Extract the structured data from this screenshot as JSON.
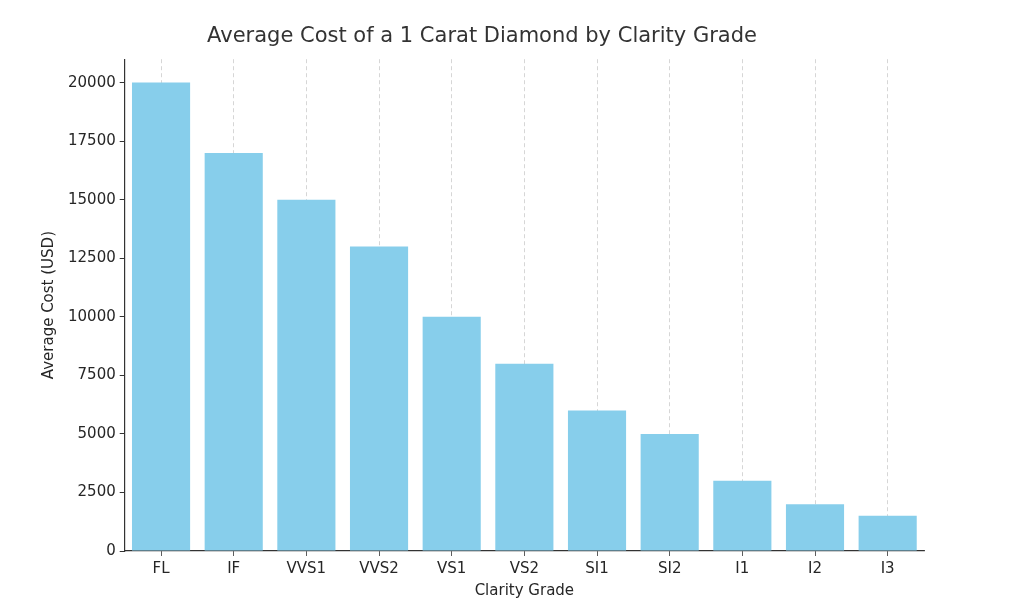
{
  "chart_data": {
    "type": "bar",
    "title": "Average Cost of a 1 Carat Diamond by Clarity Grade",
    "x_label": "Clarity Grade",
    "y_label": "Average Cost (USD)",
    "categories": [
      "FL",
      "IF",
      "VVS1",
      "VVS2",
      "VS1",
      "VS2",
      "SI1",
      "SI2",
      "I1",
      "I2",
      "I3"
    ],
    "values": [
      20000,
      17000,
      15000,
      13000,
      10000,
      8000,
      6000,
      5000,
      3000,
      2000,
      1500
    ],
    "color": "#87ceeb",
    "ylim": [
      0,
      21000
    ],
    "yticks": [
      0,
      2500,
      5000,
      7500,
      10000,
      12500,
      15000,
      17500,
      20000
    ],
    "grid": true
  }
}
